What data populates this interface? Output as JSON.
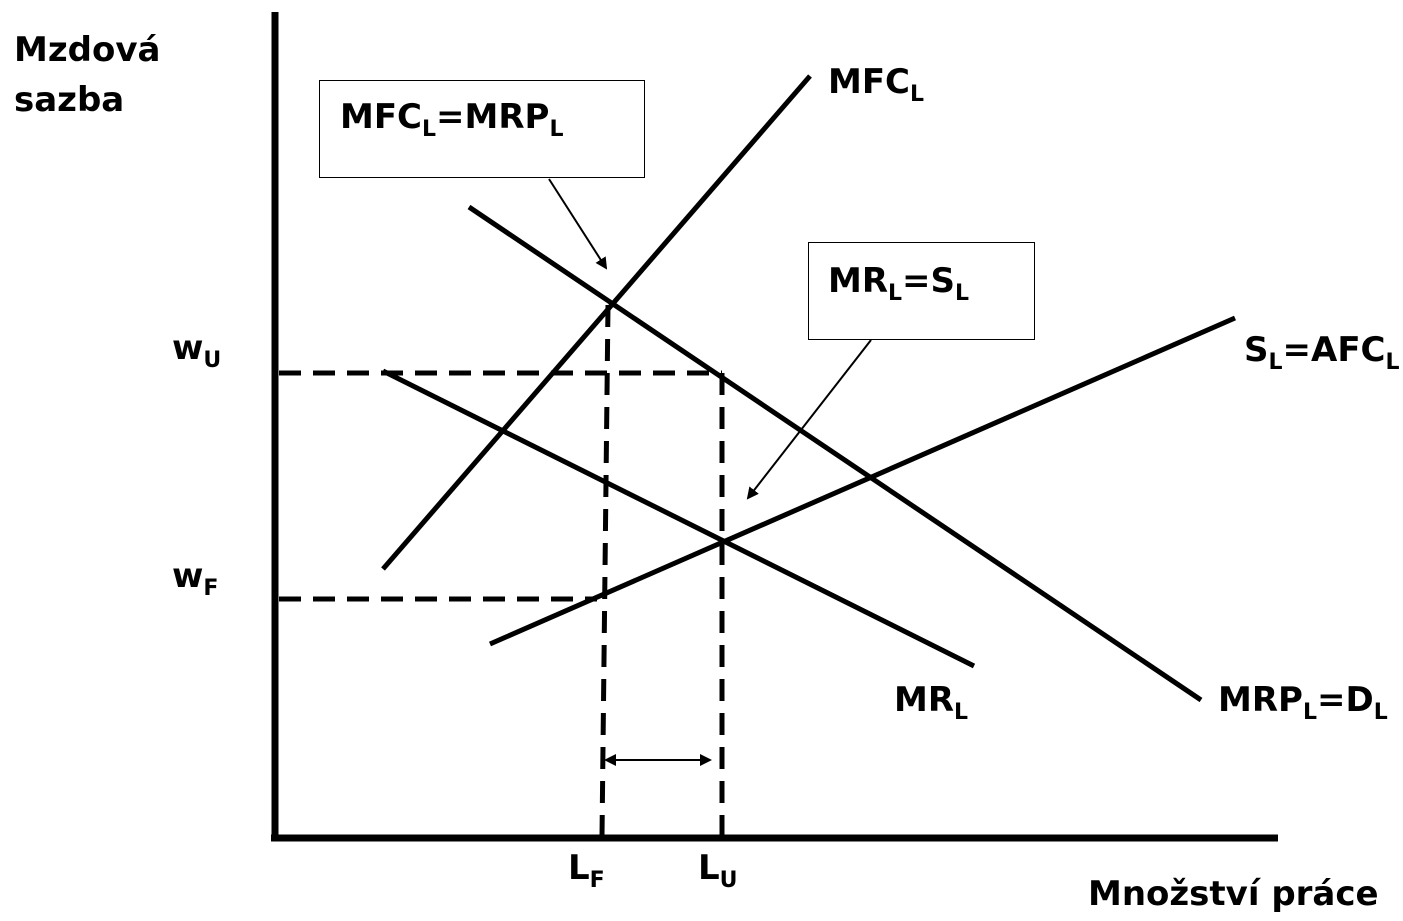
{
  "axes": {
    "y_label_line1": "Mzdová",
    "y_label_line2": "sazba",
    "x_label": "Množství práce"
  },
  "ticks": {
    "w_u": {
      "base": "w",
      "sub": "U"
    },
    "w_f": {
      "base": "w",
      "sub": "F"
    },
    "l_f": {
      "base": "L",
      "sub": "F"
    },
    "l_u": {
      "base": "L",
      "sub": "U"
    }
  },
  "curves": {
    "mfc": {
      "base": "MFC",
      "sub": "L"
    },
    "supply": {
      "p1": "S",
      "s1": "L",
      "p2": "=AFC",
      "s2": "L"
    },
    "mr": {
      "base": "MR",
      "sub": "L"
    },
    "mrp": {
      "p1": "MRP",
      "s1": "L",
      "p2": "=D",
      "s2": "L"
    }
  },
  "callouts": {
    "mfc_mrp": {
      "p1": "MFC",
      "s1": "L",
      "p2": "=MRP",
      "s2": "L"
    },
    "mr_s": {
      "p1": "MR",
      "s1": "L",
      "p2": "=S",
      "s2": "L"
    }
  },
  "colors": {
    "stroke": "#000000",
    "background": "#ffffff"
  }
}
